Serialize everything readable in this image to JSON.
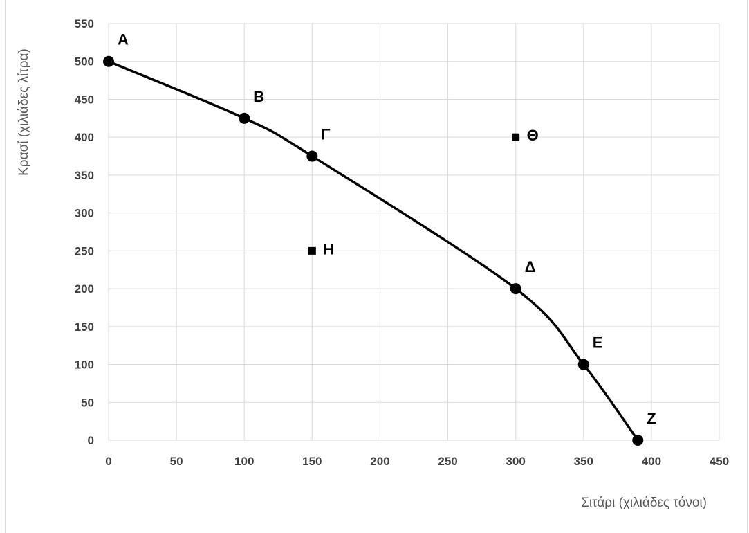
{
  "chart_data": {
    "type": "scatter",
    "xlabel": "Σιτάρι (χιλιάδες τόνοι)",
    "ylabel": "Κρασί (χιλιάδες  λίτρα)",
    "xlim": [
      0,
      450
    ],
    "ylim": [
      0,
      550
    ],
    "x_ticks": [
      "0",
      "50",
      "100",
      "150",
      "200",
      "250",
      "300",
      "350",
      "400",
      "450"
    ],
    "y_ticks": [
      "0",
      "50",
      "100",
      "150",
      "200",
      "250",
      "300",
      "350",
      "400",
      "450",
      "500",
      "550"
    ],
    "grid": true,
    "legend": "none",
    "line_color": "#000000",
    "grid_color": "#d9d9d9",
    "curve": {
      "style": "smooth line with circle markers",
      "points": [
        {
          "label": "Α",
          "x": 0,
          "y": 500
        },
        {
          "label": "Β",
          "x": 100,
          "y": 425
        },
        {
          "label": "Γ",
          "x": 150,
          "y": 375
        },
        {
          "label": "Δ",
          "x": 300,
          "y": 200
        },
        {
          "label": "Ε",
          "x": 350,
          "y": 100
        },
        {
          "label": "Ζ",
          "x": 390,
          "y": 0
        }
      ]
    },
    "isolated_points": {
      "style": "square markers",
      "points": [
        {
          "label": "Η",
          "x": 150,
          "y": 250
        },
        {
          "label": "Θ",
          "x": 300,
          "y": 400
        }
      ]
    }
  }
}
